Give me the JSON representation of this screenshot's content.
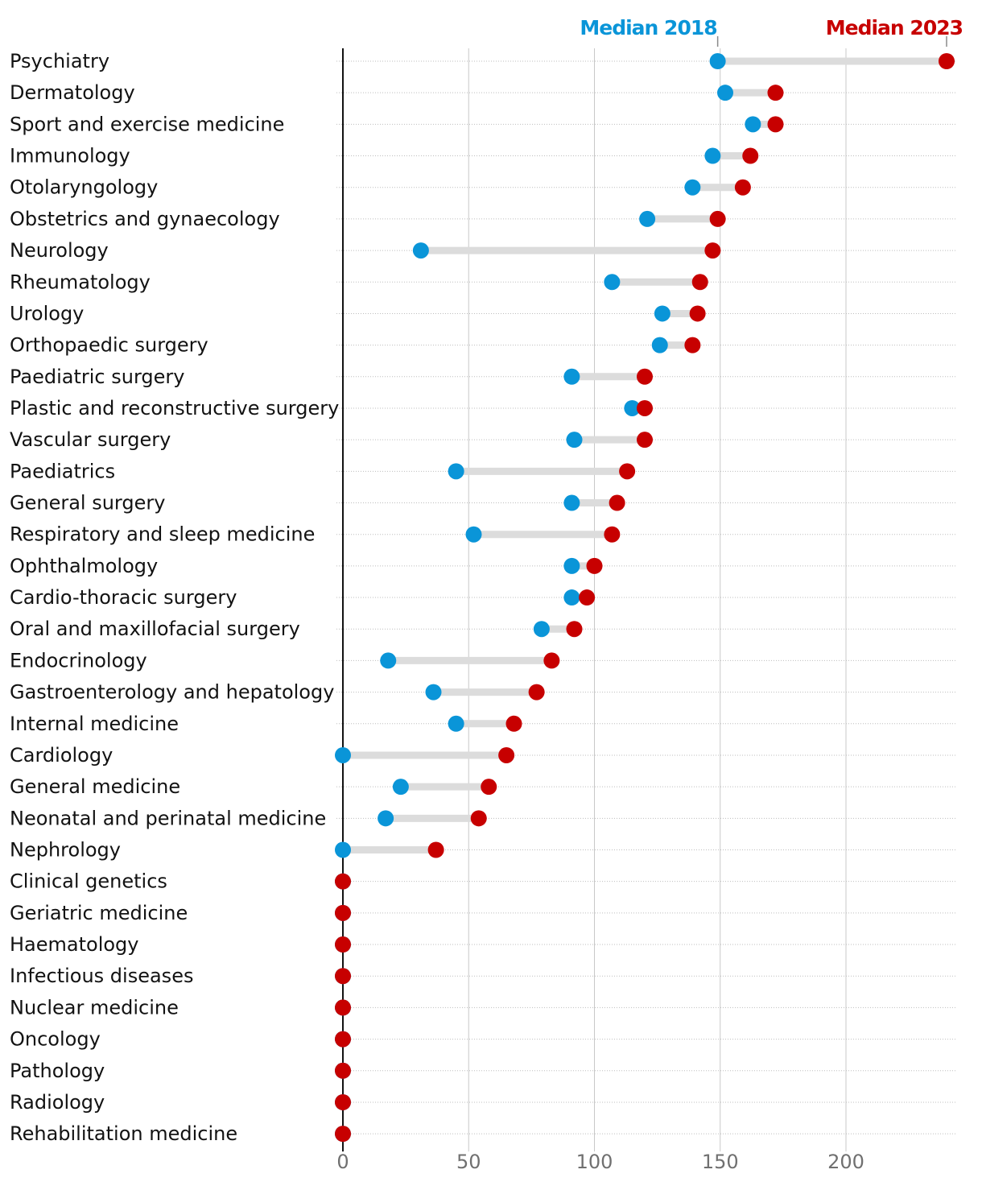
{
  "colors": {
    "median_2018": "#0a95d8",
    "median_2023": "#c70000",
    "connector": "#dcdcdc",
    "gridline": "#c8c8c8",
    "axis": "#121212",
    "label": "#121212",
    "tick": "#707070"
  },
  "legend": {
    "median_2018_label": "Median 2018",
    "median_2023_label": "Median 2023"
  },
  "chart_data": {
    "type": "dumbbell",
    "title": "",
    "xlabel": "",
    "ylabel": "",
    "xlim": [
      0,
      242
    ],
    "xticks": [
      "0",
      "50",
      "100",
      "150",
      "200"
    ],
    "legend_markers": {
      "median_2018": 149,
      "median_2023": 240
    },
    "categories": [
      "Psychiatry",
      "Dermatology",
      "Sport and exercise medicine",
      "Immunology",
      "Otolaryngology",
      "Obstetrics and gynaecology",
      "Neurology",
      "Rheumatology",
      "Urology",
      "Orthopaedic surgery",
      "Paediatric surgery",
      "Plastic and reconstructive surgery",
      "Vascular surgery",
      "Paediatrics",
      "General surgery",
      "Respiratory and sleep medicine",
      "Ophthalmology",
      "Cardio-thoracic surgery",
      "Oral and maxillofacial surgery",
      "Endocrinology",
      "Gastroenterology and hepatology",
      "Internal medicine",
      "Cardiology",
      "General medicine",
      "Neonatal and perinatal medicine",
      "Nephrology",
      "Clinical genetics",
      "Geriatric medicine",
      "Haematology",
      "Infectious diseases",
      "Nuclear medicine",
      "Oncology",
      "Pathology",
      "Radiology",
      "Rehabilitation medicine"
    ],
    "series": [
      {
        "name": "Median 2018",
        "values": [
          149,
          152,
          163,
          147,
          139,
          121,
          31,
          107,
          127,
          126,
          91,
          115,
          92,
          45,
          91,
          52,
          91,
          91,
          79,
          18,
          36,
          45,
          0,
          23,
          17,
          0,
          0,
          0,
          0,
          0,
          0,
          0,
          0,
          0,
          0
        ]
      },
      {
        "name": "Median 2023",
        "values": [
          240,
          172,
          172,
          162,
          159,
          149,
          147,
          142,
          141,
          139,
          120,
          120,
          120,
          113,
          109,
          107,
          100,
          97,
          92,
          83,
          77,
          68,
          65,
          58,
          54,
          37,
          0,
          0,
          0,
          0,
          0,
          0,
          0,
          0,
          0
        ]
      }
    ]
  }
}
